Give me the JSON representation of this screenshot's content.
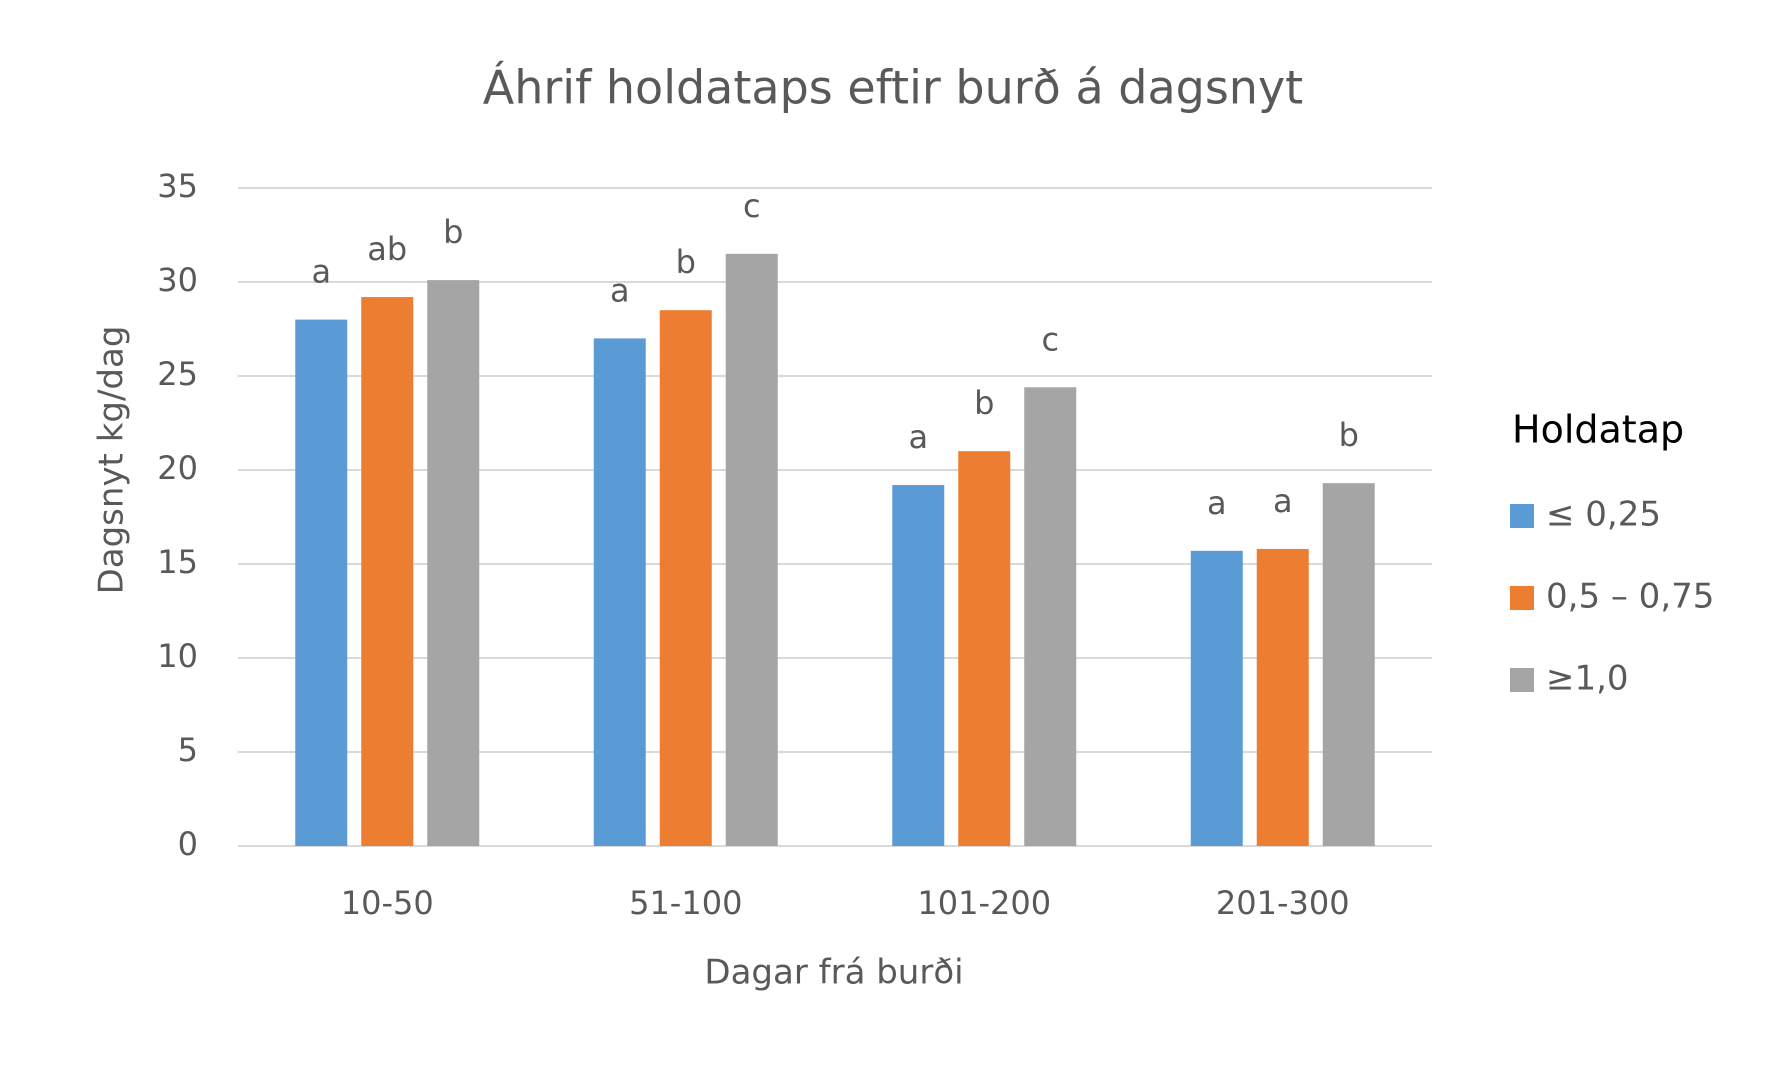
{
  "chart_data": {
    "type": "bar",
    "title": "Áhrif holdataps eftir burð á dagsnyt",
    "x_label": "Dagar frá burði",
    "y_label": "Dagsnyt kg/dag",
    "legend_title": "Holdatap",
    "legend_position": "right",
    "categories": [
      "10-50",
      "51-100",
      "101-200",
      "201-300"
    ],
    "series": [
      {
        "name": "≤ 0,25",
        "color": "#5b9bd5",
        "values": [
          28.0,
          27.0,
          19.2,
          15.7
        ],
        "letters": [
          "a",
          "a",
          "a",
          "a"
        ]
      },
      {
        "name": "0,5 – 0,75",
        "color": "#ed7d31",
        "values": [
          29.2,
          28.5,
          21.0,
          15.8
        ],
        "letters": [
          "ab",
          "b",
          "b",
          "a"
        ]
      },
      {
        "name": "≥1,0",
        "color": "#a5a5a5",
        "values": [
          30.1,
          31.5,
          24.4,
          19.3
        ],
        "letters": [
          "b",
          "c",
          "c",
          "b"
        ]
      }
    ],
    "ylim": [
      0,
      35
    ],
    "yticks": [
      0,
      5,
      10,
      15,
      20,
      25,
      30,
      35
    ],
    "grid": true
  }
}
